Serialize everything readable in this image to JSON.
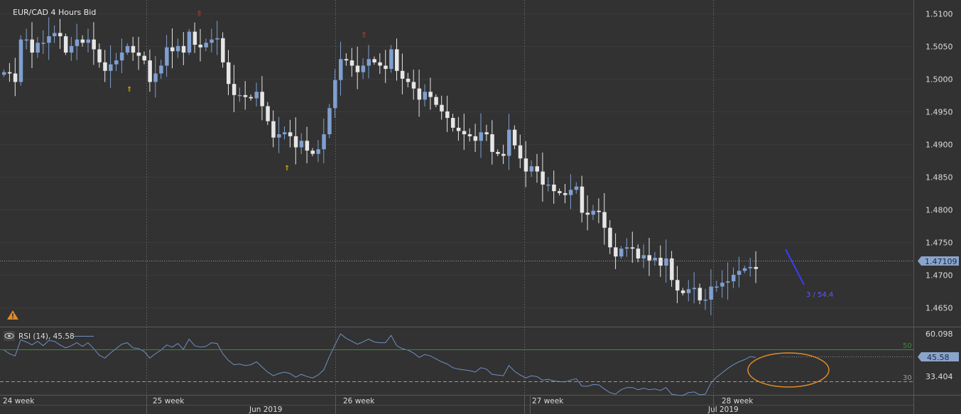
{
  "title": "EUR/CAD  4 Hours Bid",
  "price_axis": {
    "ticks": [
      "1.5100",
      "1.5050",
      "1.5000",
      "1.4950",
      "1.4900",
      "1.4850",
      "1.4800",
      "1.4750",
      "1.4700",
      "1.4650"
    ],
    "current_price_label": "1.47109"
  },
  "rsi_panel": {
    "label": "RSI (14), 45.58",
    "current_value_label": "45.58",
    "axis_labels": [
      "60.098",
      "33.404"
    ],
    "level_high": "50",
    "level_low": "30"
  },
  "time_axis": {
    "week_labels": [
      "24 week",
      "25 week",
      "26 week",
      "27 week",
      "28 week"
    ],
    "month_labels": [
      "Jun 2019",
      "Jul 2019"
    ]
  },
  "annotation_label": "3 / 54.4",
  "colors": {
    "background": "#323232",
    "bull_candle": "#7f9fd0",
    "bear_candle": "#e6e6e6",
    "rsi_line": "#6f8fc4",
    "trend_line": "#3c3cff",
    "highlight_ellipse": "#e08a2a",
    "level_50": "#3c8a3c",
    "warning": "#e08a2a"
  },
  "chart_data": {
    "type": "candlestick",
    "instrument": "EUR/CAD",
    "timeframe": "4 Hours",
    "price_range": [
      1.4625,
      1.5115
    ],
    "rsi_range": [
      20,
      65
    ],
    "close": [
      1.501,
      1.5008,
      1.4995,
      1.506,
      1.506,
      1.504,
      1.5055,
      1.5055,
      1.5065,
      1.507,
      1.5065,
      1.504,
      1.505,
      1.506,
      1.5055,
      1.506,
      1.5045,
      1.5025,
      1.5012,
      1.5022,
      1.5028,
      1.504,
      1.505,
      1.504,
      1.5035,
      1.5028,
      1.4995,
      1.5008,
      1.502,
      1.5048,
      1.5042,
      1.505,
      1.504,
      1.5072,
      1.5052,
      1.5048,
      1.5055,
      1.506,
      1.5062,
      1.5025,
      1.4992,
      1.4975,
      1.4975,
      1.4972,
      1.497,
      1.498,
      1.4958,
      1.4935,
      1.491,
      1.4915,
      1.4918,
      1.4912,
      1.4895,
      1.4905,
      1.489,
      1.4885,
      1.4892,
      1.4915,
      1.4955,
      1.4998,
      1.503,
      1.5028,
      1.502,
      1.501,
      1.502,
      1.503,
      1.5025,
      1.502,
      1.5015,
      1.5045,
      1.5012,
      1.5,
      1.4995,
      1.4985,
      1.4968,
      1.498,
      1.4972,
      1.496,
      1.495,
      1.494,
      1.4925,
      1.492,
      1.4915,
      1.4912,
      1.4905,
      1.4918,
      1.4915,
      1.4888,
      1.4885,
      1.4882,
      1.4922,
      1.4898,
      1.4878,
      1.4858,
      1.4866,
      1.4858,
      1.4838,
      1.4838,
      1.4828,
      1.4825,
      1.4822,
      1.483,
      1.4835,
      1.4795,
      1.4792,
      1.4798,
      1.4796,
      1.4772,
      1.4742,
      1.4728,
      1.474,
      1.4742,
      1.474,
      1.4725,
      1.473,
      1.4722,
      1.4726,
      1.4714,
      1.4725,
      1.4692,
      1.4676,
      1.4672,
      1.4678,
      1.468,
      1.4661,
      1.4662,
      1.4682,
      1.4682,
      1.4688,
      1.469,
      1.47,
      1.4706,
      1.471,
      1.4712,
      1.4709
    ],
    "rsi": [
      50.5,
      48.0,
      46.5,
      57.5,
      56.0,
      54.0,
      56.5,
      53.5,
      57.0,
      56.5,
      54.0,
      52.0,
      53.5,
      55.5,
      53.0,
      55.5,
      51.5,
      47.0,
      45.0,
      48.5,
      51.5,
      54.5,
      55.5,
      52.0,
      51.5,
      49.5,
      45.0,
      48.0,
      50.5,
      54.0,
      52.5,
      55.0,
      51.0,
      58.0,
      53.5,
      52.5,
      53.0,
      55.5,
      55.0,
      48.0,
      43.5,
      40.5,
      41.0,
      40.0,
      40.5,
      42.5,
      39.0,
      35.5,
      33.0,
      34.5,
      35.5,
      34.5,
      32.0,
      34.0,
      32.5,
      31.5,
      33.5,
      37.0,
      46.0,
      54.0,
      61.5,
      58.5,
      56.5,
      54.5,
      56.0,
      58.0,
      56.0,
      55.5,
      55.5,
      60.5,
      53.5,
      51.5,
      50.5,
      48.5,
      45.5,
      47.5,
      46.5,
      44.5,
      42.5,
      41.0,
      38.5,
      37.5,
      37.0,
      36.5,
      35.5,
      38.5,
      37.5,
      34.0,
      33.5,
      33.0,
      40.0,
      36.0,
      33.5,
      31.5,
      33.0,
      32.5,
      30.0,
      30.5,
      29.5,
      29.0,
      28.8,
      30.0,
      31.0,
      26.0,
      25.8,
      27.0,
      26.8,
      24.0,
      21.5,
      20.5,
      23.5,
      25.0,
      25.0,
      23.5,
      24.5,
      23.5,
      24.0,
      23.0,
      25.0,
      20.5,
      19.8,
      19.5,
      21.5,
      22.0,
      20.0,
      20.5,
      28.0,
      32.0,
      35.0,
      38.0,
      40.5,
      42.5,
      44.0,
      46.0,
      45.5
    ]
  }
}
